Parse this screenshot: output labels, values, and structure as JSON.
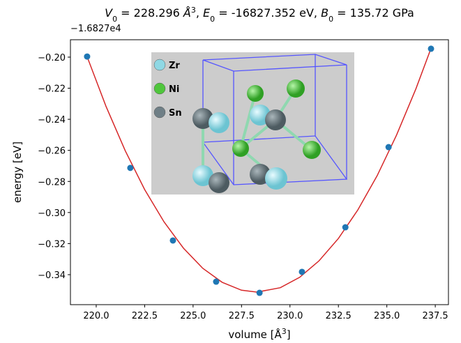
{
  "chart_data": {
    "type": "scatter",
    "title_parts": [
      {
        "text": "V",
        "role": "italic"
      },
      {
        "text": "0",
        "role": "sub"
      },
      {
        "text": " = 228.296 ",
        "role": "normal"
      },
      {
        "text": "Å",
        "role": "italic"
      },
      {
        "text": "3",
        "role": "sup"
      },
      {
        "text": ", ",
        "role": "normal"
      },
      {
        "text": "E",
        "role": "italic"
      },
      {
        "text": "0",
        "role": "sub"
      },
      {
        "text": " = -16827.352 eV, ",
        "role": "normal"
      },
      {
        "text": "B",
        "role": "italic"
      },
      {
        "text": "0",
        "role": "sub"
      },
      {
        "text": " = 135.72 GPa",
        "role": "normal"
      }
    ],
    "xlabel_parts": [
      {
        "text": "volume [Å",
        "role": "normal"
      },
      {
        "text": "3",
        "role": "sup"
      },
      {
        "text": "]",
        "role": "normal"
      }
    ],
    "ylabel": "energy [eV]",
    "y_offset_label": "−1.6827e4",
    "xlim": [
      218.67,
      238.18
    ],
    "ylim": [
      -0.3593,
      -0.1888
    ],
    "xticks": [
      {
        "value": 220,
        "label": "220.0"
      },
      {
        "value": 222.5,
        "label": "222.5"
      },
      {
        "value": 225,
        "label": "225.0"
      },
      {
        "value": 227.5,
        "label": "227.5"
      },
      {
        "value": 230,
        "label": "230.0"
      },
      {
        "value": 232.5,
        "label": "232.5"
      },
      {
        "value": 235,
        "label": "235.0"
      },
      {
        "value": 237.5,
        "label": "237.5"
      }
    ],
    "yticks": [
      {
        "value": -0.34,
        "label": "−0.34"
      },
      {
        "value": -0.32,
        "label": "−0.32"
      },
      {
        "value": -0.3,
        "label": "−0.30"
      },
      {
        "value": -0.28,
        "label": "−0.28"
      },
      {
        "value": -0.26,
        "label": "−0.26"
      },
      {
        "value": -0.24,
        "label": "−0.24"
      },
      {
        "value": -0.22,
        "label": "−0.22"
      },
      {
        "value": -0.2,
        "label": "−0.20"
      }
    ],
    "series": [
      {
        "type": "scatter",
        "color": "#1f77b4",
        "x": [
          219.53,
          221.76,
          223.96,
          226.19,
          228.43,
          230.62,
          232.86,
          235.09,
          237.28
        ],
        "values": [
          -0.1996,
          -0.2713,
          -0.318,
          -0.3445,
          -0.3517,
          -0.3382,
          -0.3095,
          -0.2579,
          -0.1946
        ]
      },
      {
        "type": "line",
        "color": "#d62728",
        "x": [
          219.5,
          220.5,
          221.5,
          222.5,
          223.5,
          224.5,
          225.5,
          226.5,
          227.5,
          228.3,
          229.5,
          230.5,
          231.5,
          232.5,
          233.5,
          234.5,
          235.5,
          236.5,
          237.3
        ],
        "values": [
          -0.1987,
          -0.2315,
          -0.2603,
          -0.2852,
          -0.306,
          -0.3229,
          -0.3359,
          -0.3449,
          -0.35,
          -0.3512,
          -0.3484,
          -0.3417,
          -0.3311,
          -0.3167,
          -0.2984,
          -0.2763,
          -0.2502,
          -0.2204,
          -0.1937
        ]
      }
    ],
    "inset": {
      "legend": [
        {
          "name": "Zr",
          "color": "#8fd8e4"
        },
        {
          "name": "Ni",
          "color": "#4fc63c"
        },
        {
          "name": "Sn",
          "color": "#6f7f86"
        }
      ]
    }
  }
}
